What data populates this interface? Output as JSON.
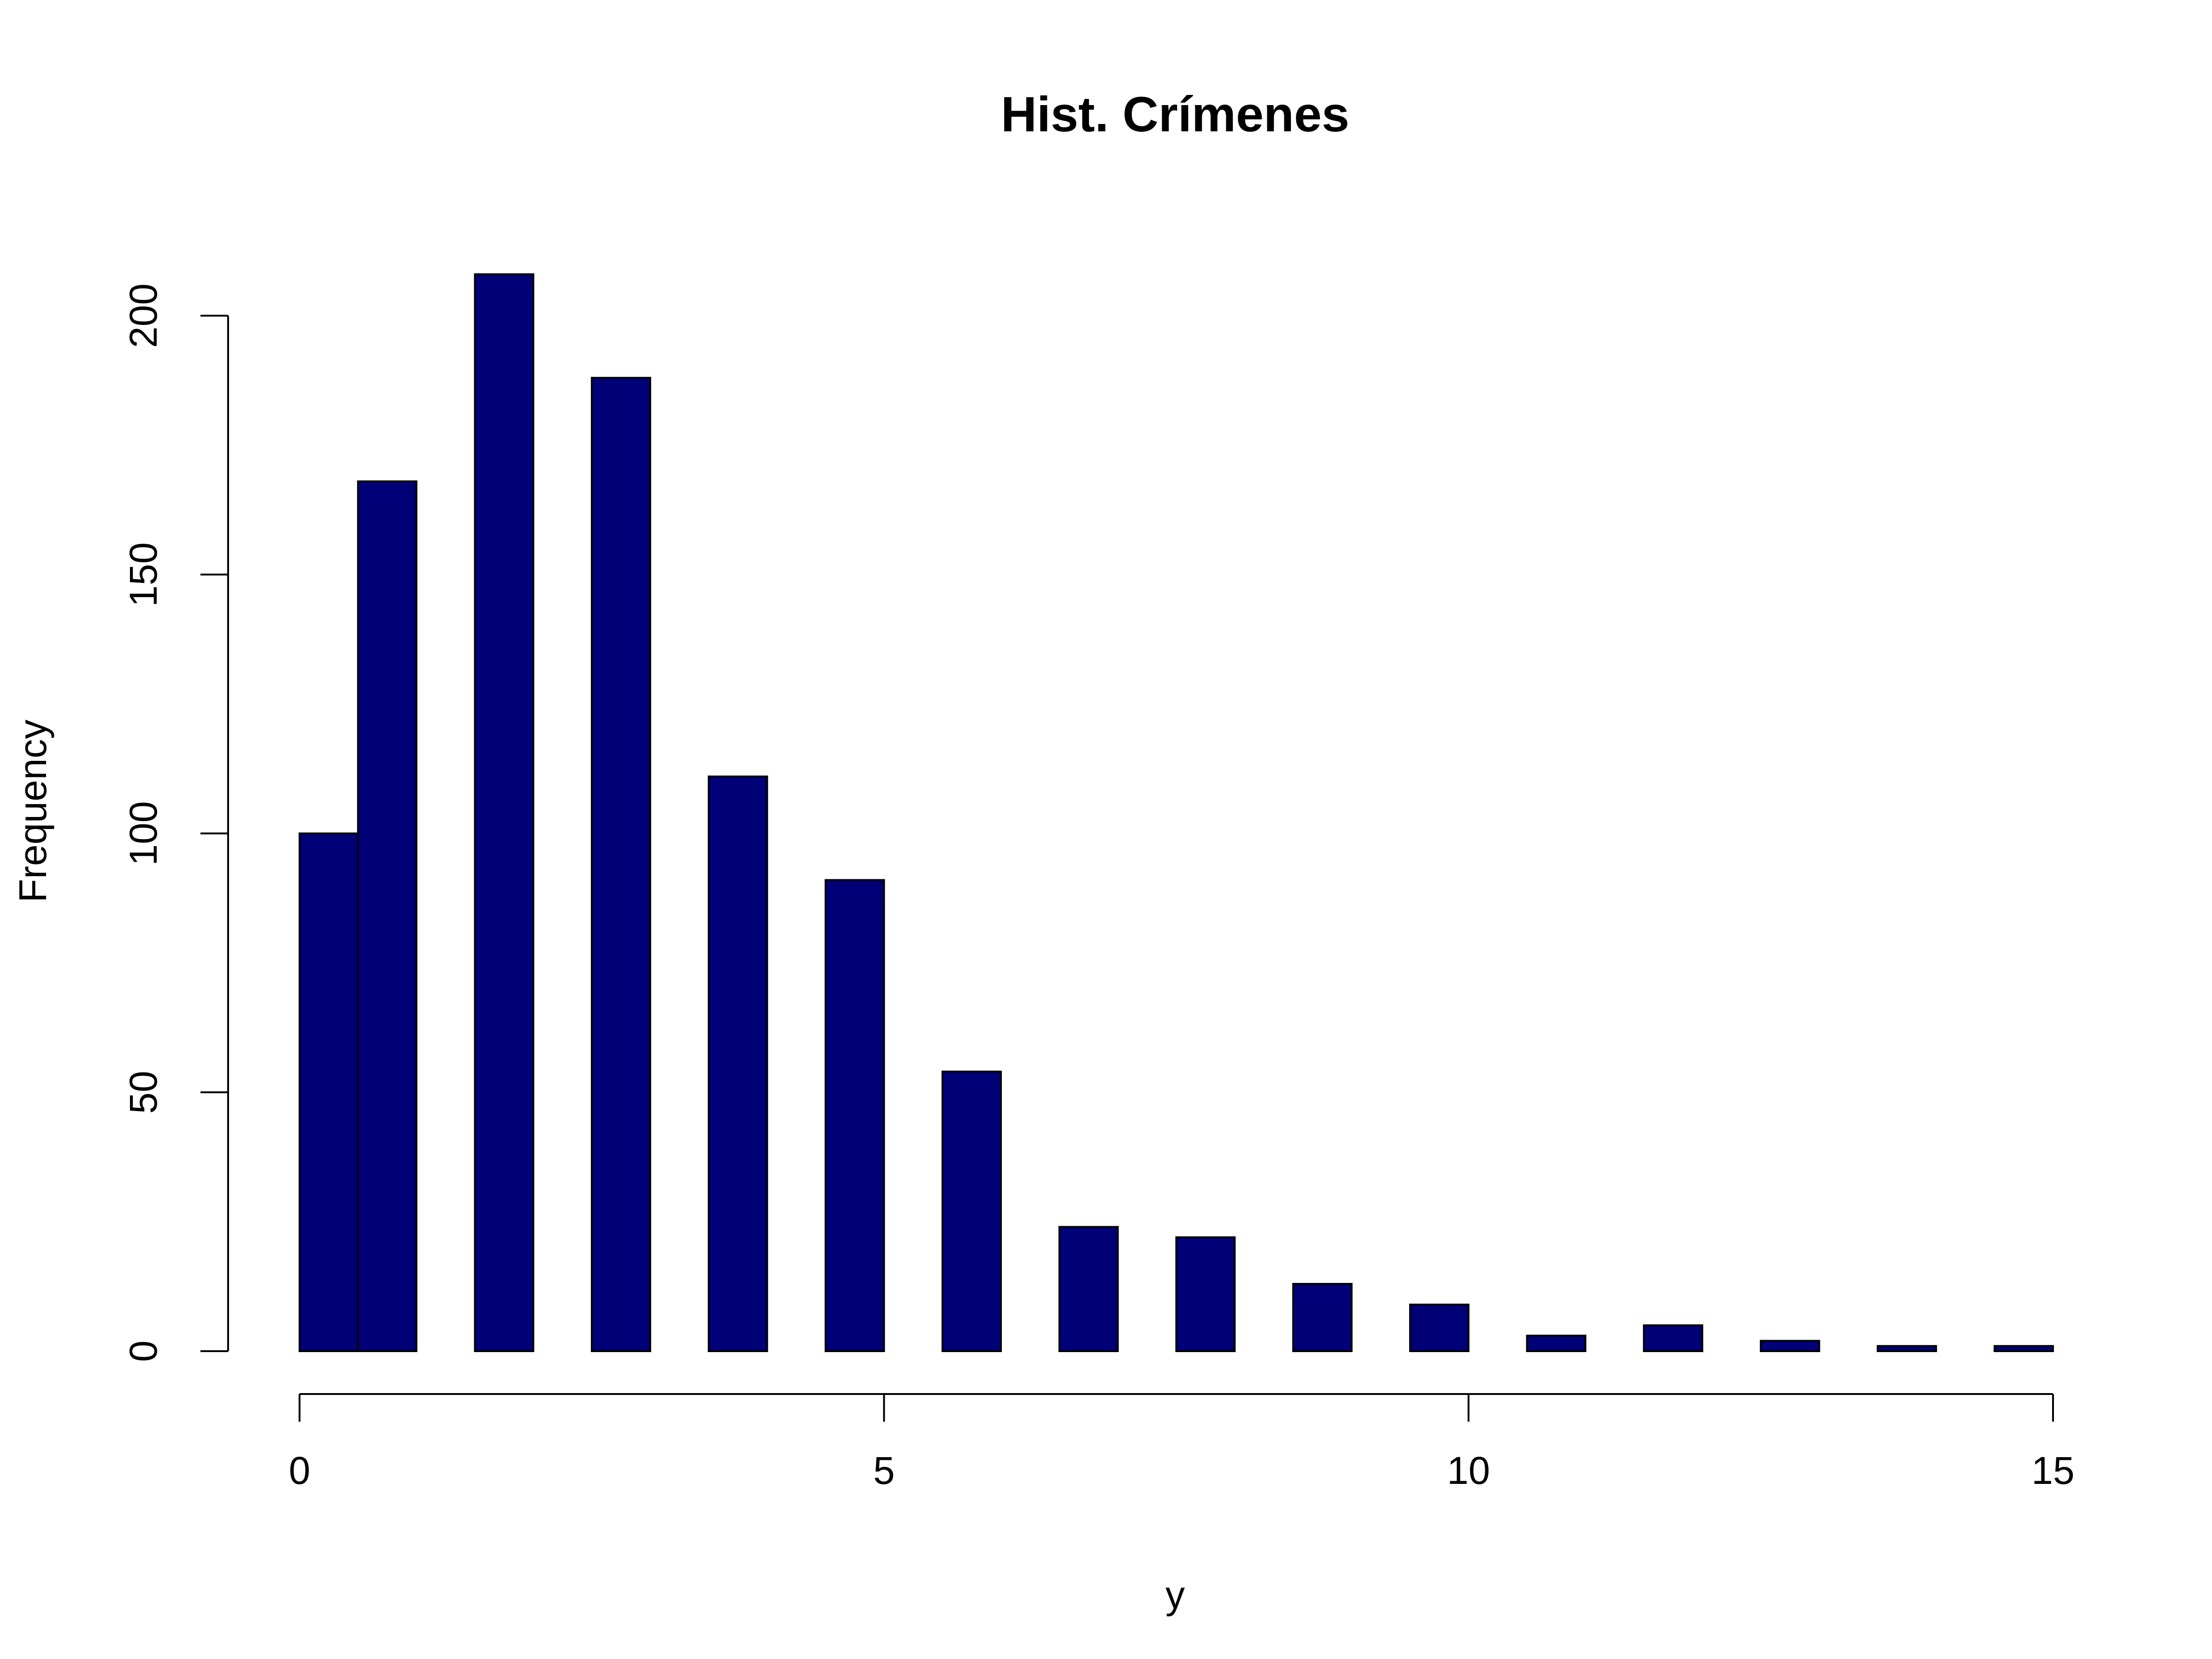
{
  "chart_data": {
    "type": "bar",
    "title": "Hist. Crímenes",
    "xlabel": "y",
    "ylabel": "Frequency",
    "bar_color": "#000077",
    "xlim": [
      0,
      15
    ],
    "ylim": [
      0,
      208
    ],
    "x_ticks": [
      0,
      5,
      10,
      15
    ],
    "y_ticks": [
      0,
      50,
      100,
      150,
      200
    ],
    "bins": [
      {
        "start": 0.0,
        "end": 0.5,
        "value": 100
      },
      {
        "start": 0.5,
        "end": 1.0,
        "value": 168
      },
      {
        "start": 1.5,
        "end": 2.0,
        "value": 208
      },
      {
        "start": 2.5,
        "end": 3.0,
        "value": 188
      },
      {
        "start": 3.5,
        "end": 4.0,
        "value": 111
      },
      {
        "start": 4.5,
        "end": 5.0,
        "value": 91
      },
      {
        "start": 5.5,
        "end": 6.0,
        "value": 54
      },
      {
        "start": 6.5,
        "end": 7.0,
        "value": 24
      },
      {
        "start": 7.5,
        "end": 8.0,
        "value": 22
      },
      {
        "start": 8.5,
        "end": 9.0,
        "value": 13
      },
      {
        "start": 9.5,
        "end": 10.0,
        "value": 9
      },
      {
        "start": 10.5,
        "end": 11.0,
        "value": 3
      },
      {
        "start": 11.5,
        "end": 12.0,
        "value": 5
      },
      {
        "start": 12.5,
        "end": 13.0,
        "value": 2
      },
      {
        "start": 13.5,
        "end": 14.0,
        "value": 1
      },
      {
        "start": 14.5,
        "end": 15.0,
        "value": 1
      }
    ]
  }
}
